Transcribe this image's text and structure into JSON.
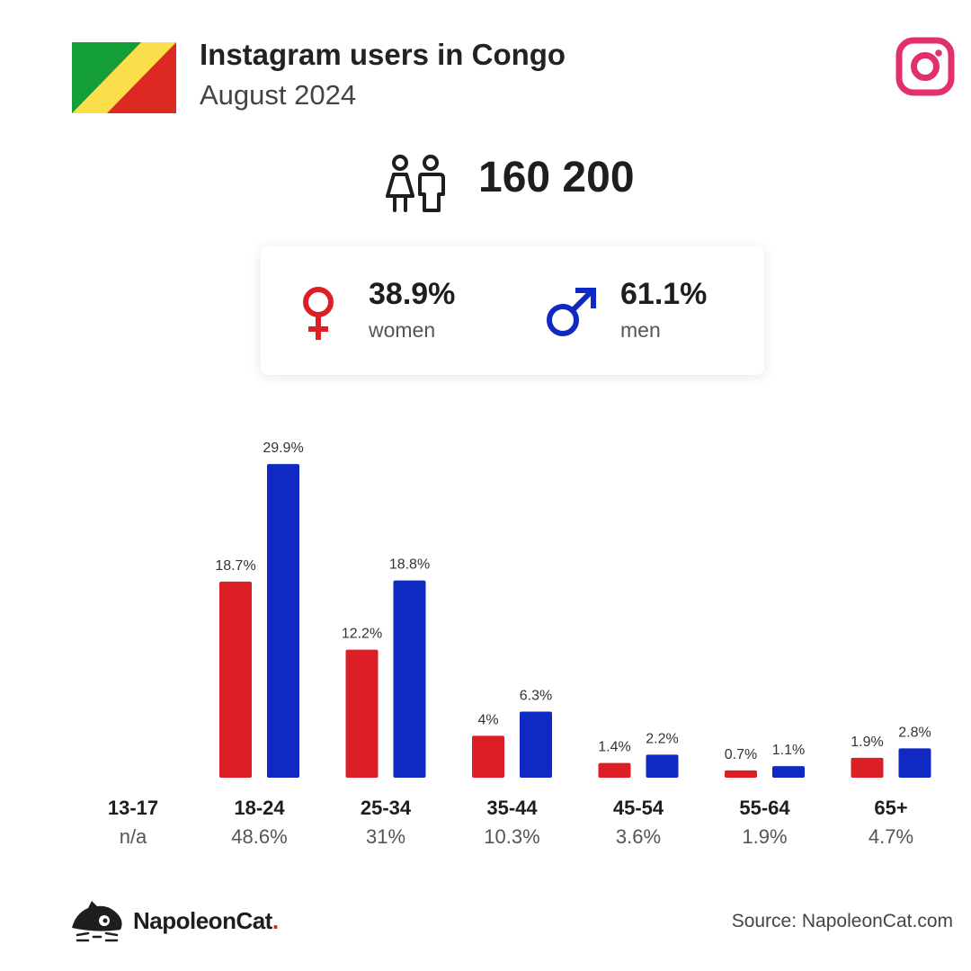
{
  "header": {
    "title": "Instagram users in Congo",
    "subtitle": "August 2024"
  },
  "total": {
    "value": "160 200"
  },
  "gender": {
    "women": {
      "pct": "38.9%",
      "label": "women"
    },
    "men": {
      "pct": "61.1%",
      "label": "men"
    }
  },
  "colors": {
    "women": "#dc1f26",
    "men": "#1029c2",
    "instagram": "#e1306c",
    "flag_green": "#149e37",
    "flag_yellow": "#fbde4a",
    "flag_red": "#dc2a22"
  },
  "chart_data": {
    "type": "bar",
    "categories": [
      "13-17",
      "18-24",
      "25-34",
      "35-44",
      "45-54",
      "55-64",
      "65+"
    ],
    "category_totals": [
      "n/a",
      "48.6%",
      "31%",
      "10.3%",
      "3.6%",
      "1.9%",
      "4.7%"
    ],
    "series": [
      {
        "values": [
          null,
          18.7,
          12.2,
          4,
          1.4,
          0.7,
          1.9
        ],
        "labels": [
          "",
          "18.7%",
          "12.2%",
          "4%",
          "1.4%",
          "0.7%",
          "1.9%"
        ]
      },
      {
        "values": [
          null,
          29.9,
          18.8,
          6.3,
          2.2,
          1.1,
          2.8
        ],
        "labels": [
          "",
          "29.9%",
          "18.8%",
          "6.3%",
          "2.2%",
          "1.1%",
          "2.8%"
        ]
      }
    ],
    "ylim": [
      0,
      30
    ],
    "grid": false
  },
  "footer": {
    "brand": "NapoleonCat",
    "brand_dot": ".",
    "source": "Source: NapoleonCat.com"
  },
  "icons": {
    "flag": "congo-flag",
    "instagram": "instagram-icon",
    "users": "users-icon",
    "female": "female-icon",
    "male": "male-icon",
    "brand": "napoleoncat-logo-icon"
  }
}
